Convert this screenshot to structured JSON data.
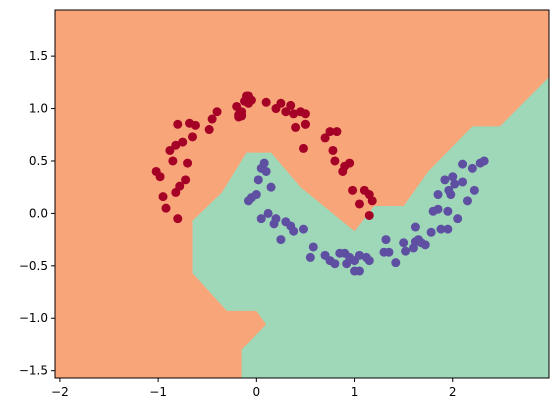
{
  "chart_data": {
    "type": "scatter",
    "title": "",
    "xlabel": "",
    "ylabel": "",
    "xlim": [
      -2.05,
      2.98
    ],
    "ylim": [
      -1.57,
      1.94
    ],
    "x_ticks": [
      -2,
      -1,
      0,
      1,
      2
    ],
    "y_ticks": [
      -1.5,
      -1.0,
      -0.5,
      0.0,
      0.5,
      1.0,
      1.5
    ],
    "x_tick_labels": [
      "−2",
      "−1",
      "0",
      "1",
      "2"
    ],
    "y_tick_labels": [
      "−1.5",
      "−1.0",
      "−0.5",
      "0.0",
      "0.5",
      "1.0",
      "1.5"
    ],
    "grid": false,
    "background_regions": [
      {
        "class": "class 0",
        "color": "#f9a57a",
        "covers": "entire plot except class 1 region"
      },
      {
        "class": "class 1",
        "color": "#9fd8b8",
        "polygon": [
          [
            -0.15,
            -1.57
          ],
          [
            -0.15,
            -1.3
          ],
          [
            0.1,
            -1.06
          ],
          [
            0.0,
            -0.93
          ],
          [
            -0.3,
            -0.93
          ],
          [
            -0.65,
            -0.57
          ],
          [
            -0.65,
            -0.07
          ],
          [
            -0.35,
            0.2
          ],
          [
            -0.1,
            0.58
          ],
          [
            0.15,
            0.58
          ],
          [
            0.45,
            0.25
          ],
          [
            1.0,
            -0.17
          ],
          [
            1.2,
            0.07
          ],
          [
            1.5,
            0.07
          ],
          [
            1.75,
            0.4
          ],
          [
            2.2,
            0.83
          ],
          [
            2.48,
            0.83
          ],
          [
            2.98,
            1.3
          ],
          [
            2.98,
            -1.57
          ]
        ]
      }
    ],
    "series": [
      {
        "color": "#a50026",
        "points": [
          [
            -1.02,
            0.4
          ],
          [
            -0.98,
            0.35
          ],
          [
            -0.95,
            0.16
          ],
          [
            -0.92,
            0.05
          ],
          [
            -0.88,
            0.6
          ],
          [
            -0.85,
            0.5
          ],
          [
            -0.82,
            0.2
          ],
          [
            -0.8,
            -0.05
          ],
          [
            -0.82,
            0.65
          ],
          [
            -0.8,
            0.85
          ],
          [
            -0.78,
            0.26
          ],
          [
            -0.75,
            0.68
          ],
          [
            -0.72,
            0.32
          ],
          [
            -0.7,
            0.48
          ],
          [
            -0.68,
            0.86
          ],
          [
            -0.65,
            0.73
          ],
          [
            -0.62,
            0.84
          ],
          [
            -0.48,
            0.8
          ],
          [
            -0.45,
            0.9
          ],
          [
            -0.4,
            0.97
          ],
          [
            -0.2,
            1.02
          ],
          [
            -0.15,
            0.93
          ],
          [
            -0.12,
            1.07
          ],
          [
            -0.1,
            1.12
          ],
          [
            -0.08,
            1.05
          ],
          [
            -0.05,
            1.08
          ],
          [
            -0.08,
            1.12
          ],
          [
            -0.1,
            1.08
          ],
          [
            -0.15,
            0.94
          ],
          [
            -0.18,
            0.92
          ],
          [
            -0.17,
            0.93
          ],
          [
            -0.18,
            0.94
          ],
          [
            -0.17,
            0.95
          ],
          [
            -0.15,
            0.97
          ],
          [
            0.1,
            1.06
          ],
          [
            0.2,
            1.0
          ],
          [
            0.25,
            1.05
          ],
          [
            0.3,
            0.97
          ],
          [
            0.35,
            1.03
          ],
          [
            0.38,
            0.95
          ],
          [
            0.4,
            0.82
          ],
          [
            0.45,
            0.97
          ],
          [
            0.48,
            0.62
          ],
          [
            0.5,
            0.85
          ],
          [
            0.5,
            0.85
          ],
          [
            0.5,
            0.95
          ],
          [
            0.7,
            0.72
          ],
          [
            0.75,
            0.78
          ],
          [
            0.78,
            0.6
          ],
          [
            0.8,
            0.5
          ],
          [
            0.82,
            0.78
          ],
          [
            0.88,
            0.4
          ],
          [
            0.9,
            0.45
          ],
          [
            0.95,
            0.48
          ],
          [
            0.98,
            0.22
          ],
          [
            1.05,
            0.09
          ],
          [
            1.1,
            0.22
          ],
          [
            1.15,
            0.18
          ],
          [
            1.18,
            0.12
          ],
          [
            1.15,
            -0.02
          ]
        ]
      },
      {
        "color": "#5e4fa2",
        "points": [
          [
            -0.08,
            0.12
          ],
          [
            -0.05,
            0.15
          ],
          [
            0.0,
            0.18
          ],
          [
            0.02,
            0.32
          ],
          [
            0.05,
            0.43
          ],
          [
            0.08,
            0.48
          ],
          [
            0.1,
            0.4
          ],
          [
            0.05,
            -0.05
          ],
          [
            0.12,
            0.0
          ],
          [
            0.15,
            0.25
          ],
          [
            0.18,
            -0.1
          ],
          [
            0.2,
            -0.05
          ],
          [
            0.25,
            -0.25
          ],
          [
            0.3,
            -0.08
          ],
          [
            0.35,
            -0.12
          ],
          [
            0.38,
            -0.17
          ],
          [
            0.48,
            -0.15
          ],
          [
            0.55,
            -0.42
          ],
          [
            0.58,
            -0.32
          ],
          [
            0.7,
            -0.4
          ],
          [
            0.75,
            -0.45
          ],
          [
            0.8,
            -0.48
          ],
          [
            0.85,
            -0.38
          ],
          [
            0.9,
            -0.38
          ],
          [
            0.92,
            -0.48
          ],
          [
            0.95,
            -0.42
          ],
          [
            1.0,
            -0.45
          ],
          [
            1.0,
            -0.55
          ],
          [
            1.05,
            -0.55
          ],
          [
            1.05,
            -0.4
          ],
          [
            1.12,
            -0.42
          ],
          [
            1.15,
            -0.45
          ],
          [
            1.3,
            -0.37
          ],
          [
            1.32,
            -0.25
          ],
          [
            1.35,
            -0.37
          ],
          [
            1.42,
            -0.47
          ],
          [
            1.5,
            -0.28
          ],
          [
            1.52,
            -0.36
          ],
          [
            1.6,
            -0.33
          ],
          [
            1.62,
            -0.13
          ],
          [
            1.62,
            -0.27
          ],
          [
            1.65,
            -0.25
          ],
          [
            1.68,
            -0.28
          ],
          [
            1.72,
            -0.3
          ],
          [
            1.78,
            -0.18
          ],
          [
            1.8,
            0.02
          ],
          [
            1.85,
            0.18
          ],
          [
            1.85,
            0.04
          ],
          [
            1.88,
            -0.15
          ],
          [
            1.92,
            0.32
          ],
          [
            1.95,
            0.02
          ],
          [
            1.95,
            -0.15
          ],
          [
            1.96,
            0.22
          ],
          [
            1.98,
            0.18
          ],
          [
            2.0,
            0.35
          ],
          [
            2.02,
            0.28
          ],
          [
            2.05,
            -0.05
          ],
          [
            2.1,
            0.3
          ],
          [
            2.15,
            0.12
          ],
          [
            2.22,
            0.22
          ],
          [
            2.1,
            0.47
          ],
          [
            2.2,
            0.43
          ],
          [
            2.28,
            0.48
          ],
          [
            2.32,
            0.5
          ]
        ]
      }
    ]
  }
}
